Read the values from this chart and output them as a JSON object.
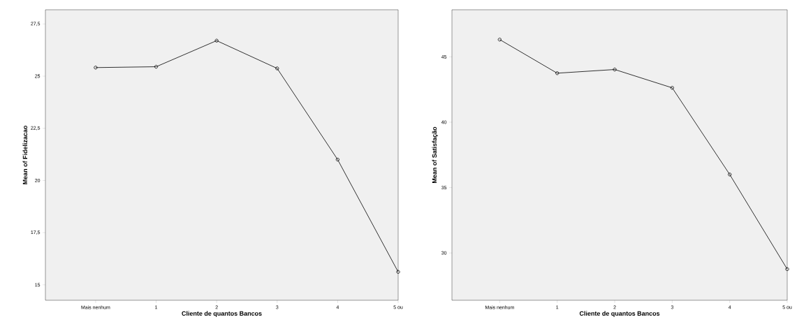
{
  "chart_data": [
    {
      "type": "line",
      "xlabel": "Cliente de quantos Bancos",
      "ylabel": "Mean of Fidelizacao",
      "categories": [
        "Mais nenhum",
        "1",
        "2",
        "3",
        "4",
        "5 ou"
      ],
      "values": [
        25.41,
        25.45,
        26.7,
        25.37,
        21.0,
        15.62
      ],
      "color": "#000000",
      "marker": "circle",
      "line_style": "solid",
      "grid": false,
      "ylim": [
        14.26,
        28.18
      ],
      "yticks": [
        15,
        {
          "value": 17.5,
          "label": "17,5"
        },
        20,
        {
          "value": 22.5,
          "label": "22,5"
        },
        25,
        {
          "value": 27.5,
          "label": "27,5"
        }
      ]
    },
    {
      "type": "line",
      "xlabel": "Cliente de quantos Bancos",
      "ylabel": "Mean of Satisfação",
      "categories": [
        "Mais nenhum",
        "1",
        "2",
        "3",
        "4",
        "5 ou"
      ],
      "values": [
        46.32,
        43.75,
        44.03,
        42.63,
        36.0,
        28.76
      ],
      "color": "#000000",
      "marker": "circle",
      "line_style": "solid",
      "grid": false,
      "ylim": [
        26.38,
        48.6
      ],
      "yticks": [
        30,
        35,
        40,
        45
      ]
    }
  ]
}
